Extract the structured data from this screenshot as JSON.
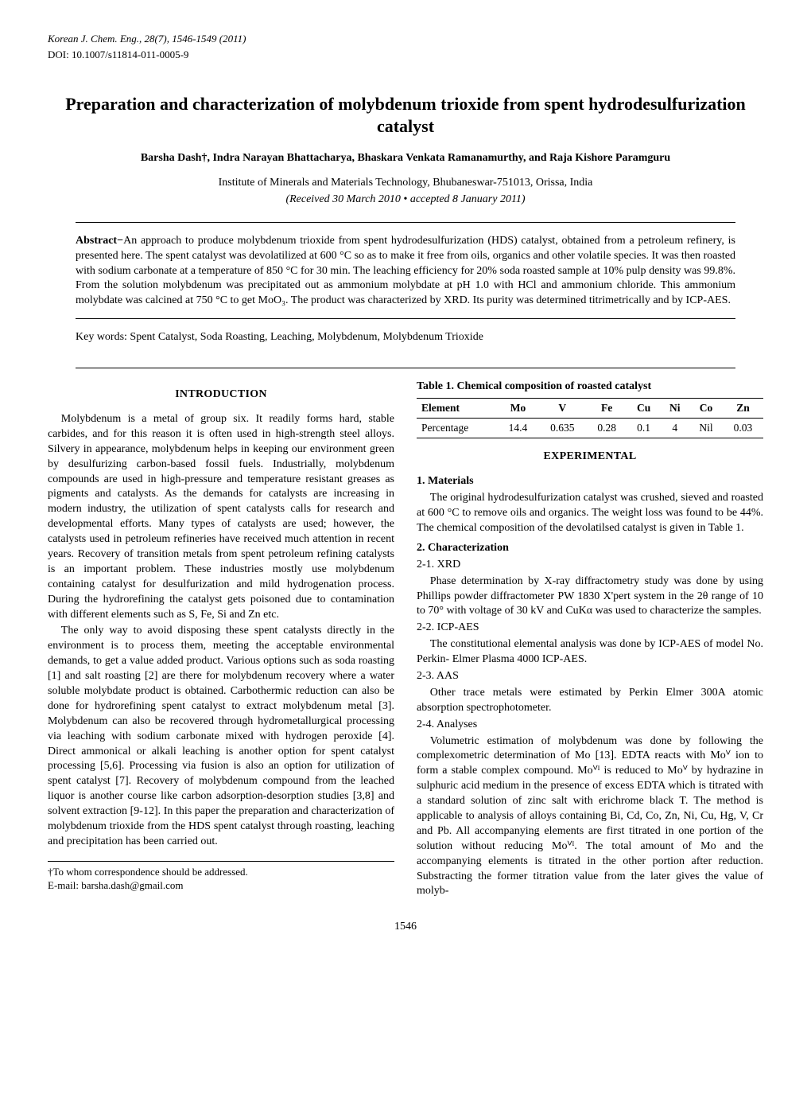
{
  "journal": "Korean J. Chem. Eng., 28(7), 1546-1549 (2011)",
  "doi": "DOI: 10.1007/s11814-011-0005-9",
  "title": "Preparation and characterization of molybdenum trioxide from spent hydrodesulfurization catalyst",
  "authors": "Barsha Dash†, Indra Narayan Bhattacharya, Bhaskara Venkata Ramanamurthy, and Raja Kishore Paramguru",
  "affiliation": "Institute of Minerals and Materials Technology, Bhubaneswar-751013, Orissa, India",
  "dates": "(Received 30 March 2010 • accepted 8 January 2011)",
  "abstract_label": "Abstract−",
  "abstract": "An approach to produce molybdenum trioxide from spent hydrodesulfurization (HDS) catalyst, obtained from a petroleum refinery, is presented here. The spent catalyst was devolatilized at 600 °C so as to make it free from oils, organics and other volatile species. It was then roasted with sodium carbonate at a temperature of 850 °C for 30 min. The leaching efficiency for 20% soda roasted sample at 10% pulp density was 99.8%. From the solution molybdenum was precipitated out as ammonium molybdate at pH 1.0 with HCl and ammonium chloride. This ammonium molybdate was calcined at 750 °C to get MoO₃. The product was characterized by XRD. Its purity was determined titrimetrically and by ICP-AES.",
  "keywords": "Key words: Spent Catalyst, Soda Roasting, Leaching, Molybdenum, Molybdenum Trioxide",
  "sections": {
    "introduction_heading": "INTRODUCTION",
    "intro_p1": "Molybdenum is a metal of group six. It readily forms hard, stable carbides, and for this reason it is often used in high-strength steel alloys. Silvery in appearance, molybdenum helps in keeping our environment green by desulfurizing carbon-based fossil fuels. Industrially, molybdenum compounds are used in high-pressure and temperature resistant greases as pigments and catalysts. As the demands for catalysts are increasing in modern industry, the utilization of spent catalysts calls for research and developmental efforts. Many types of catalysts are used; however, the catalysts used in petroleum refineries have received much attention in recent years. Recovery of transition metals from spent petroleum refining catalysts is an important problem. These industries mostly use molybdenum containing catalyst for desulfurization and mild hydrogenation process. During the hydrorefining the catalyst gets poisoned due to contamination with different elements such as S, Fe, Si and Zn etc.",
    "intro_p2": "The only way to avoid disposing these spent catalysts directly in the environment is to process them, meeting the acceptable environmental demands, to get a value added product. Various options such as soda roasting [1] and salt roasting [2] are there for molybdenum recovery where a water soluble molybdate product is obtained. Carbothermic reduction can also be done for hydrorefining spent catalyst to extract molybdenum metal [3]. Molybdenum can also be recovered through hydrometallurgical processing via leaching with sodium carbonate mixed with hydrogen peroxide [4]. Direct ammonical or alkali leaching is another option for spent catalyst processing [5,6]. Processing via fusion is also an option for utilization of spent catalyst [7]. Recovery of molybdenum compound from the leached liquor is another course like carbon adsorption-desorption studies [3,8] and solvent extraction [9-12]. In this paper the preparation and characterization of molybdenum trioxide from the HDS spent catalyst through roasting, leaching and precipitation has been carried out.",
    "experimental_heading": "EXPERIMENTAL",
    "materials_heading": "1. Materials",
    "materials_p": "The original hydrodesulfurization catalyst was crushed, sieved and roasted at 600 °C to remove oils and organics. The weight loss was found to be 44%. The chemical composition of the devolatilsed catalyst is given in Table 1.",
    "characterization_heading": "2. Characterization",
    "xrd_heading": "2-1. XRD",
    "xrd_p": "Phase determination by X-ray diffractometry study was done by using Phillips powder diffractometer PW 1830 X'pert system in the 2θ range of 10 to 70° with voltage of 30 kV and CuKα was used to characterize the samples.",
    "icpaes_heading": "2-2. ICP-AES",
    "icpaes_p": "The constitutional elemental analysis was done by ICP-AES of model No. Perkin- Elmer Plasma 4000 ICP-AES.",
    "aas_heading": "2-3. AAS",
    "aas_p": "Other trace metals were estimated by Perkin Elmer 300A atomic absorption spectrophotometer.",
    "analyses_heading": "2-4. Analyses",
    "analyses_p": "Volumetric estimation of molybdenum was done by following the complexometric determination of Mo [13]. EDTA reacts with Moⱽ ion to form a stable complex compound. Moⱽᴵ is reduced to Moⱽ by hydrazine in sulphuric acid medium in the presence of excess EDTA which is titrated with a standard solution of zinc salt with erichrome black T. The method is applicable to analysis of alloys containing Bi, Cd, Co, Zn, Ni, Cu, Hg, V, Cr and Pb. All accompanying elements are first titrated in one portion of the solution without reducing Moⱽᴵ. The total amount of Mo and the accompanying elements is titrated in the other portion after reduction. Substracting the former titration value from the later gives the value of molyb-"
  },
  "table1": {
    "caption": "Table 1. Chemical composition of roasted catalyst",
    "columns": [
      "Element",
      "Mo",
      "V",
      "Fe",
      "Cu",
      "Ni",
      "Co",
      "Zn"
    ],
    "rows": [
      [
        "Percentage",
        "14.4",
        "0.635",
        "0.28",
        "0.1",
        "4",
        "Nil",
        "0.03"
      ]
    ],
    "col_align": [
      "left",
      "center",
      "center",
      "center",
      "center",
      "center",
      "center",
      "center"
    ],
    "border_color": "#000000",
    "font_size_pt": 13.5
  },
  "footnote": {
    "line1": "†To whom correspondence should be addressed.",
    "line2": "E-mail: barsha.dash@gmail.com"
  },
  "pagenum": "1546",
  "colors": {
    "text": "#000000",
    "background": "#ffffff",
    "rule": "#000000"
  },
  "typography": {
    "body_pt": 14,
    "title_pt": 22,
    "footnote_pt": 13,
    "font_family": "Times New Roman"
  }
}
